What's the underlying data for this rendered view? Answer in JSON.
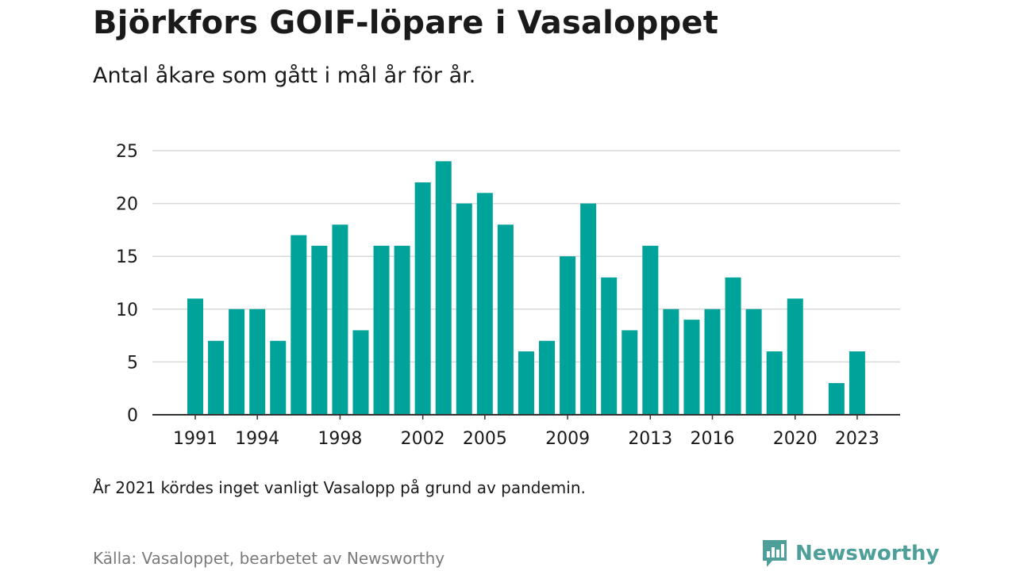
{
  "header": {
    "title": "Björkfors GOIF-löpare i Vasaloppet",
    "subtitle": "Antal åkare som gått i mål år för år."
  },
  "footer": {
    "note": "År 2021 kördes inget vanligt Vasalopp på grund av pandemin.",
    "source": "Källa: Vasaloppet, bearbetet av Newsworthy",
    "brand": "Newsworthy",
    "brand_icon": "newsworthy-logo-icon"
  },
  "colors": {
    "bar": "#00a39a",
    "grid": "#d9d9d9",
    "axis": "#333333",
    "text": "#1a1a1a",
    "muted": "#7a7a7a",
    "brand": "#4e9f9a"
  },
  "chart_data": {
    "type": "bar",
    "categories": [
      1991,
      1992,
      1993,
      1994,
      1995,
      1996,
      1997,
      1998,
      1999,
      2000,
      2001,
      2002,
      2003,
      2004,
      2005,
      2006,
      2007,
      2008,
      2009,
      2010,
      2011,
      2012,
      2013,
      2014,
      2015,
      2016,
      2017,
      2018,
      2019,
      2020,
      2021,
      2022,
      2023
    ],
    "values": [
      11,
      7,
      10,
      10,
      7,
      17,
      16,
      18,
      8,
      16,
      16,
      22,
      24,
      20,
      21,
      18,
      6,
      7,
      15,
      20,
      13,
      8,
      16,
      10,
      9,
      10,
      13,
      10,
      6,
      11,
      null,
      3,
      6
    ],
    "x_tick_labels": [
      1991,
      1994,
      1998,
      2002,
      2005,
      2009,
      2013,
      2016,
      2020,
      2023
    ],
    "y_ticks": [
      0,
      5,
      10,
      15,
      20,
      25
    ],
    "ylim": [
      0,
      25
    ],
    "grid": true,
    "legend": "none",
    "title": "Björkfors GOIF-löpare i Vasaloppet",
    "subtitle": "Antal åkare som gått i mål år för år.",
    "xlabel": "",
    "ylabel": ""
  }
}
